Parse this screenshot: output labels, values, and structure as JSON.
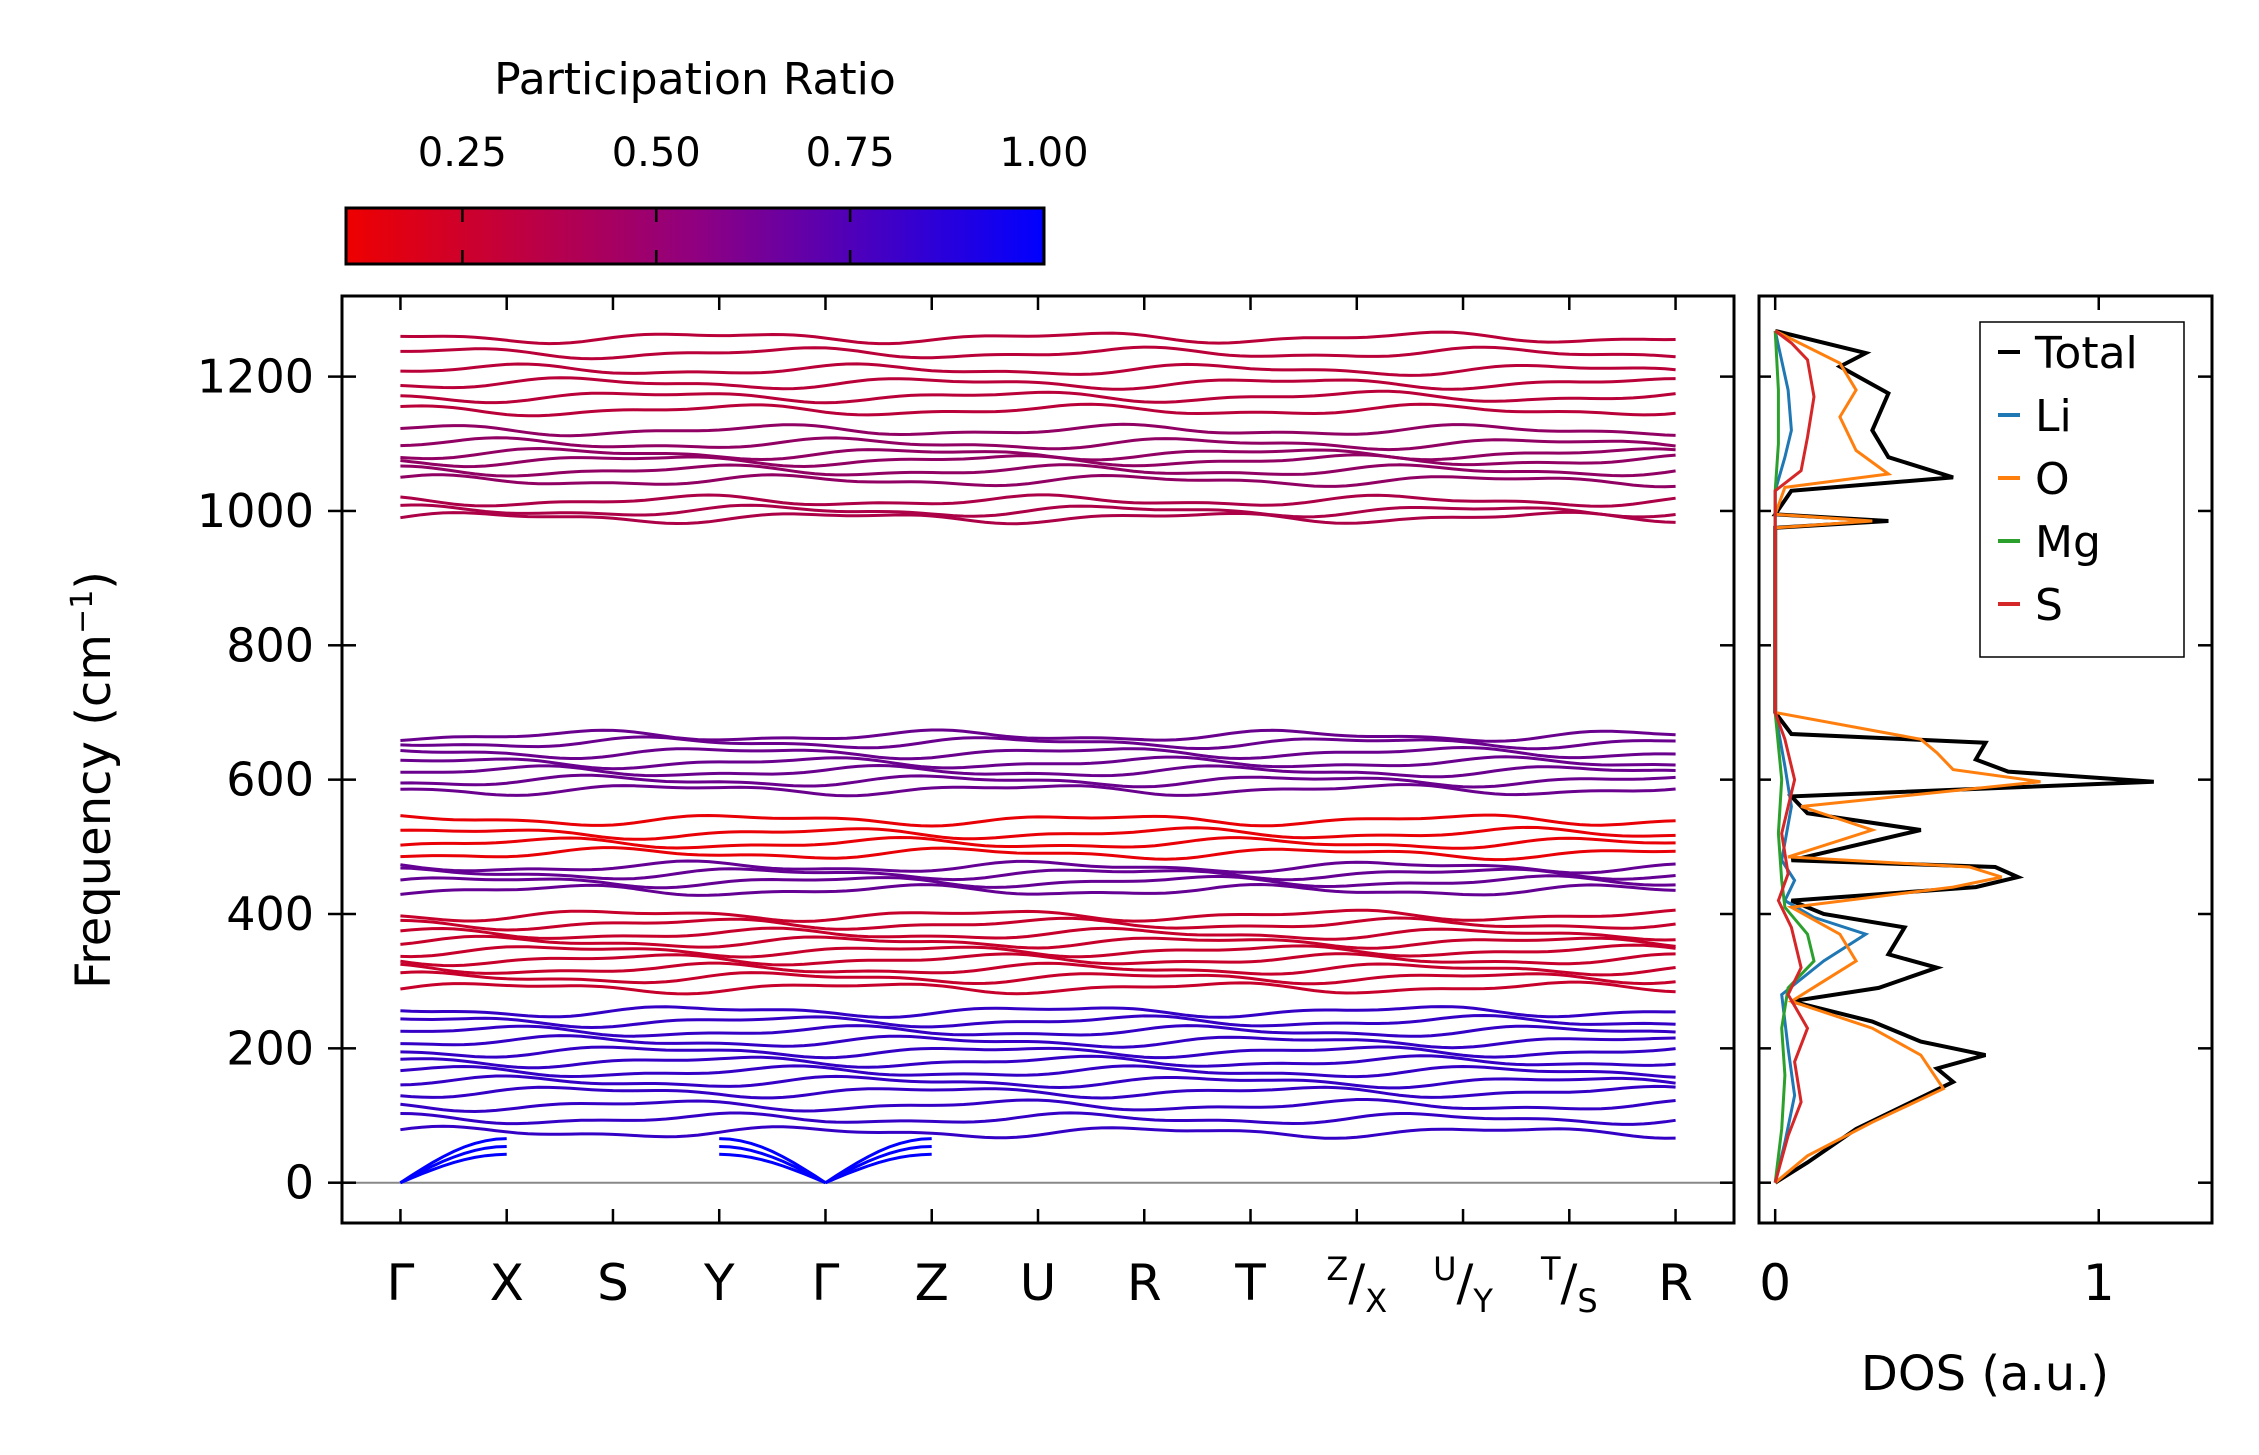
{
  "chart_data": [
    {
      "type": "line",
      "title": "",
      "xlabel": "",
      "ylabel_main": "Frequency (cm",
      "ylabel_sup": "−1",
      "ylabel_tail": ")",
      "ylim": [
        -60,
        1320
      ],
      "yticks": [
        0,
        200,
        400,
        600,
        800,
        1000,
        1200
      ],
      "ytick_labels": [
        "0",
        "200",
        "400",
        "600",
        "800",
        "1000",
        "1200"
      ],
      "kpath": [
        {
          "pos": 0,
          "label": "Γ"
        },
        {
          "pos": 1,
          "label": "X"
        },
        {
          "pos": 2,
          "label": "S"
        },
        {
          "pos": 3,
          "label": "Y"
        },
        {
          "pos": 4,
          "label": "Γ"
        },
        {
          "pos": 5,
          "label": "Z"
        },
        {
          "pos": 6,
          "label": "U"
        },
        {
          "pos": 7,
          "label": "R"
        },
        {
          "pos": 8,
          "label": "T"
        },
        {
          "pos": 9,
          "label_sup": "Z",
          "label_sub": "X"
        },
        {
          "pos": 10,
          "label_sup": "U",
          "label_sub": "Y"
        },
        {
          "pos": 11,
          "label_sup": "T",
          "label_sub": "S"
        },
        {
          "pos": 12,
          "label": "R"
        }
      ],
      "x_range": [
        -0.55,
        12.55
      ],
      "band_groups": [
        {
          "freqs": [
            990,
            1000,
            1015
          ],
          "ratio": 0.35
        },
        {
          "freqs": [
            1045,
            1060,
            1075,
            1085,
            1100,
            1120
          ],
          "ratio": 0.45
        },
        {
          "freqs": [
            1150,
            1170,
            1190,
            1210,
            1235,
            1258
          ],
          "ratio": 0.3
        },
        {
          "freqs": [
            585,
            598,
            612,
            625,
            640,
            655,
            665
          ],
          "ratio": 0.6
        },
        {
          "freqs": [
            490,
            505,
            520,
            540
          ],
          "ratio": 0.12
        },
        {
          "freqs": [
            435,
            448,
            460,
            470
          ],
          "ratio": 0.62
        },
        {
          "freqs": [
            290,
            305,
            318,
            332,
            345,
            358,
            370,
            385,
            398
          ],
          "ratio": 0.25
        },
        {
          "freqs": [
            75,
            95,
            115,
            135,
            150,
            165,
            180,
            195,
            210,
            225,
            240,
            255
          ],
          "ratio": 0.8
        }
      ],
      "acoustic": {
        "gamma_pos": [
          0,
          4
        ],
        "max_freq": 65,
        "ratio": 1.0
      }
    },
    {
      "type": "line",
      "xlabel": "DOS (a.u.)",
      "xlim": [
        -0.05,
        1.35
      ],
      "xticks": [
        0,
        1
      ],
      "xtick_labels": [
        "0",
        "1"
      ],
      "ylim": [
        -60,
        1320
      ],
      "legend_position": "top-right",
      "series": [
        {
          "name": "Total",
          "color": "#000000",
          "points": [
            [
              0,
              0
            ],
            [
              0.1,
              30
            ],
            [
              0.25,
              80
            ],
            [
              0.55,
              150
            ],
            [
              0.5,
              170
            ],
            [
              0.65,
              190
            ],
            [
              0.45,
              210
            ],
            [
              0.3,
              240
            ],
            [
              0.05,
              270
            ],
            [
              0.32,
              290
            ],
            [
              0.5,
              320
            ],
            [
              0.35,
              340
            ],
            [
              0.4,
              380
            ],
            [
              0.15,
              400
            ],
            [
              0.05,
              420
            ],
            [
              0.62,
              440
            ],
            [
              0.75,
              455
            ],
            [
              0.68,
              470
            ],
            [
              0.05,
              480
            ],
            [
              0.45,
              525
            ],
            [
              0.1,
              550
            ],
            [
              0.05,
              575
            ],
            [
              1.17,
              597
            ],
            [
              0.72,
              612
            ],
            [
              0.62,
              630
            ],
            [
              0.65,
              655
            ],
            [
              0.05,
              668
            ],
            [
              0,
              700
            ],
            [
              0,
              975
            ],
            [
              0.35,
              985
            ],
            [
              0,
              995
            ],
            [
              0.05,
              1030
            ],
            [
              0.55,
              1050
            ],
            [
              0.35,
              1080
            ],
            [
              0.3,
              1120
            ],
            [
              0.35,
              1175
            ],
            [
              0.2,
              1215
            ],
            [
              0.28,
              1235
            ],
            [
              0,
              1268
            ]
          ]
        },
        {
          "name": "Li",
          "color": "#1f77b4",
          "points": [
            [
              0,
              0
            ],
            [
              0.03,
              60
            ],
            [
              0.06,
              130
            ],
            [
              0.04,
              200
            ],
            [
              0.02,
              280
            ],
            [
              0.15,
              330
            ],
            [
              0.28,
              370
            ],
            [
              0.12,
              395
            ],
            [
              0.03,
              420
            ],
            [
              0.06,
              450
            ],
            [
              0.02,
              480
            ],
            [
              0.05,
              560
            ],
            [
              0.03,
              620
            ],
            [
              0,
              700
            ],
            [
              0,
              1030
            ],
            [
              0.03,
              1080
            ],
            [
              0.05,
              1120
            ],
            [
              0.04,
              1180
            ],
            [
              0,
              1268
            ]
          ]
        },
        {
          "name": "O",
          "color": "#ff7f0e",
          "points": [
            [
              0,
              0
            ],
            [
              0.1,
              40
            ],
            [
              0.3,
              90
            ],
            [
              0.52,
              140
            ],
            [
              0.45,
              190
            ],
            [
              0.3,
              230
            ],
            [
              0.05,
              270
            ],
            [
              0.15,
              300
            ],
            [
              0.25,
              330
            ],
            [
              0.2,
              370
            ],
            [
              0.05,
              410
            ],
            [
              0.55,
              440
            ],
            [
              0.7,
              455
            ],
            [
              0.6,
              470
            ],
            [
              0.04,
              485
            ],
            [
              0.3,
              525
            ],
            [
              0.08,
              560
            ],
            [
              0.82,
              597
            ],
            [
              0.55,
              615
            ],
            [
              0.5,
              640
            ],
            [
              0.45,
              660
            ],
            [
              0,
              700
            ],
            [
              0,
              975
            ],
            [
              0.3,
              985
            ],
            [
              0,
              995
            ],
            [
              0.03,
              1035
            ],
            [
              0.35,
              1055
            ],
            [
              0.25,
              1090
            ],
            [
              0.2,
              1140
            ],
            [
              0.25,
              1180
            ],
            [
              0.2,
              1220
            ],
            [
              0,
              1268
            ]
          ]
        },
        {
          "name": "Mg",
          "color": "#2ca02c",
          "points": [
            [
              0,
              0
            ],
            [
              0.02,
              80
            ],
            [
              0.03,
              160
            ],
            [
              0.02,
              230
            ],
            [
              0.04,
              290
            ],
            [
              0.12,
              330
            ],
            [
              0.1,
              370
            ],
            [
              0.03,
              410
            ],
            [
              0.02,
              450
            ],
            [
              0.01,
              520
            ],
            [
              0.02,
              600
            ],
            [
              0,
              700
            ],
            [
              0,
              1030
            ],
            [
              0.01,
              1100
            ],
            [
              0.01,
              1180
            ],
            [
              0,
              1268
            ]
          ]
        },
        {
          "name": "S",
          "color": "#d62728",
          "points": [
            [
              0,
              0
            ],
            [
              0.04,
              70
            ],
            [
              0.08,
              120
            ],
            [
              0.06,
              180
            ],
            [
              0.1,
              230
            ],
            [
              0.04,
              280
            ],
            [
              0.08,
              320
            ],
            [
              0.05,
              380
            ],
            [
              0.01,
              420
            ],
            [
              0.04,
              460
            ],
            [
              0.02,
              520
            ],
            [
              0.06,
              600
            ],
            [
              0.03,
              660
            ],
            [
              0,
              700
            ],
            [
              0,
              1030
            ],
            [
              0.08,
              1060
            ],
            [
              0.1,
              1110
            ],
            [
              0.12,
              1170
            ],
            [
              0.1,
              1225
            ],
            [
              0.05,
              1250
            ],
            [
              0,
              1268
            ]
          ]
        }
      ]
    }
  ],
  "colorbar": {
    "title": "Participation Ratio",
    "vmin": 0.1,
    "vmax": 1.0,
    "tick_values": [
      0.25,
      0.5,
      0.75,
      1.0
    ],
    "tick_labels": [
      "0.25",
      "0.50",
      "0.75",
      "1.00"
    ],
    "low_color": "#ee0000",
    "high_color": "#0000ff"
  }
}
